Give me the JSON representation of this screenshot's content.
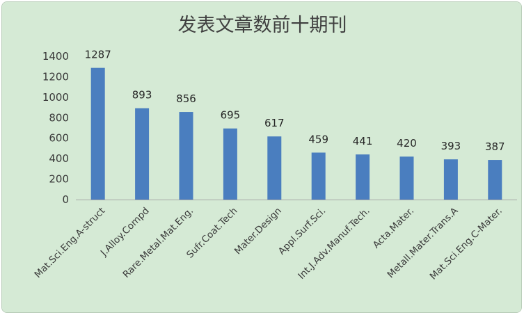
{
  "colors": {
    "background": "#d5ead5",
    "bar": "#4a7ebf",
    "axis": "#a6a6a6",
    "text": "#404040"
  },
  "chart_data": {
    "type": "bar",
    "title": "发表文章数前十期刊",
    "xlabel": "",
    "ylabel": "",
    "categories": [
      "Mat.Sci.Eng.A-struct",
      "J.Alloy.Compd",
      "Rare.Metal.Mat.Eng.",
      "Sufr.Coat.Tech",
      "Mater.Design",
      "Appl.Surf.Sci.",
      "Int.J.Adv.Manuf.Tech.",
      "Acta.Mater.",
      "Metall.Mater.Trans.A",
      "Mat.Sci.Eng.C-Mater."
    ],
    "values": [
      1287,
      893,
      856,
      695,
      617,
      459,
      441,
      420,
      393,
      387
    ],
    "data_labels": [
      "1287",
      "893",
      "856",
      "695",
      "617",
      "459",
      "441",
      "420",
      "393",
      "387"
    ],
    "ylim": [
      0,
      1400
    ],
    "yticks": [
      0,
      200,
      400,
      600,
      800,
      1000,
      1200,
      1400
    ],
    "ytick_labels": [
      "0",
      "200",
      "400",
      "600",
      "800",
      "1000",
      "1200",
      "1400"
    ],
    "grid": false,
    "legend": "none"
  }
}
